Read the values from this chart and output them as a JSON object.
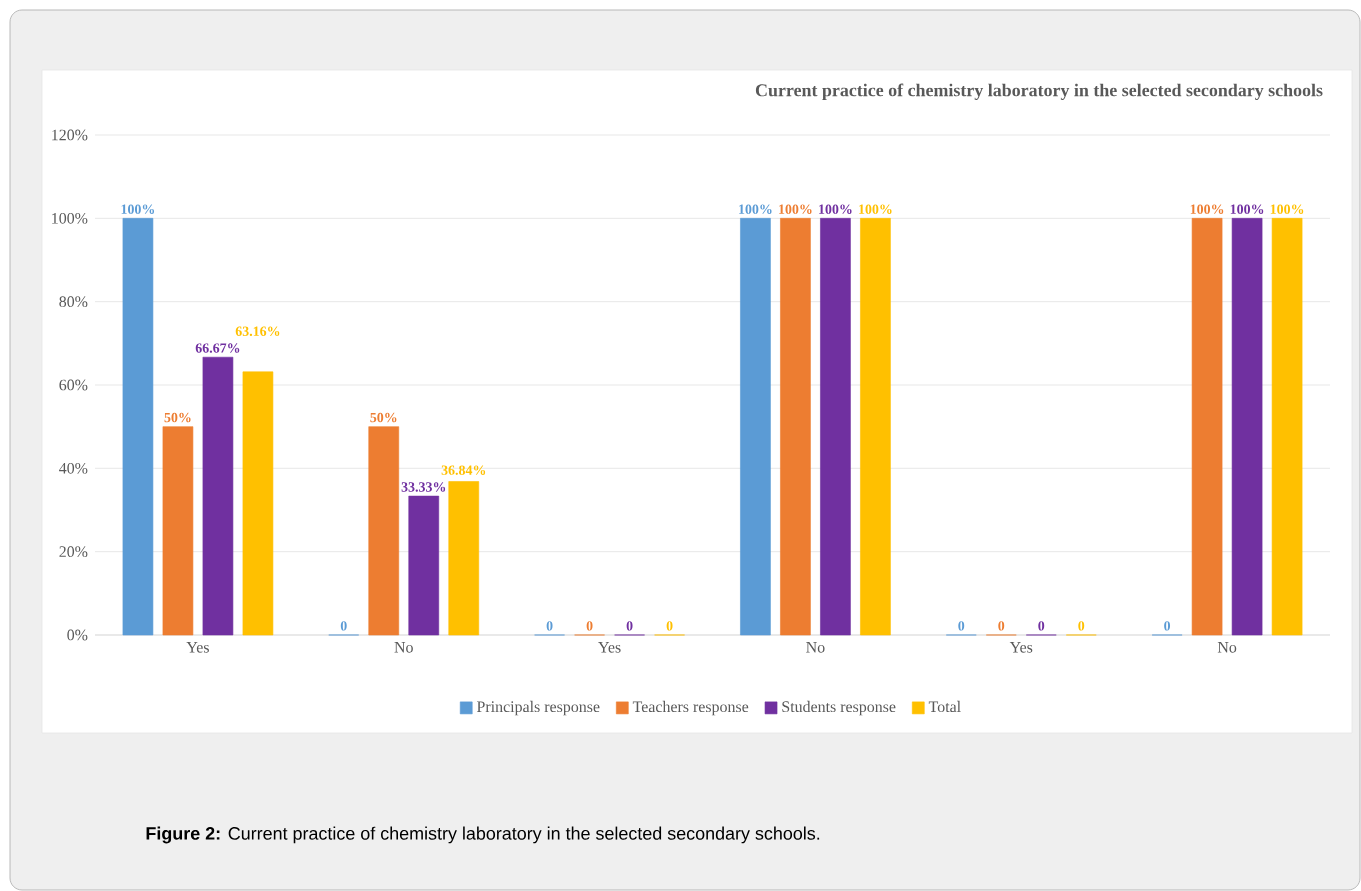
{
  "chart_data": {
    "type": "bar",
    "title": "Current practice of chemistry laboratory in the selected secondary schools",
    "categories": [
      "Yes",
      "No",
      "Yes",
      "No",
      "Yes",
      "No"
    ],
    "series": [
      {
        "name": "Principals response",
        "color": "#5b9bd5",
        "values": [
          100,
          0,
          0,
          100,
          0,
          0
        ],
        "value_labels": [
          "100%",
          "0",
          "0",
          "100%",
          "0",
          "0"
        ]
      },
      {
        "name": "Teachers response",
        "color": "#ed7d31",
        "values": [
          50,
          50,
          0,
          100,
          0,
          100
        ],
        "value_labels": [
          "50%",
          "50%",
          "0",
          "100%",
          "0",
          "100%"
        ]
      },
      {
        "name": "Students response",
        "color": "#7030a0",
        "values": [
          66.67,
          33.33,
          0,
          100,
          0,
          100
        ],
        "value_labels": [
          "66.67%",
          "33.33%",
          "0",
          "100%",
          "0",
          "100%"
        ]
      },
      {
        "name": "Total",
        "color": "#ffc000",
        "values": [
          63.16,
          36.84,
          0,
          100,
          0,
          100
        ],
        "value_labels": [
          "63.16%",
          "36.84%",
          "0",
          "100%",
          "0",
          "100%"
        ]
      }
    ],
    "ylim": [
      0,
      120
    ],
    "yticks": [
      {
        "value": 0,
        "label": "0%"
      },
      {
        "value": 20,
        "label": "20%"
      },
      {
        "value": 40,
        "label": "40%"
      },
      {
        "value": 60,
        "label": "60%"
      },
      {
        "value": 80,
        "label": "80%"
      },
      {
        "value": 100,
        "label": "100%"
      },
      {
        "value": 120,
        "label": "120%"
      }
    ],
    "grid": "y",
    "legend": "bottom",
    "annotations": [
      "**Figure 2:** Current practice of chemistry laboratory in the selected secondary schools."
    ]
  }
}
